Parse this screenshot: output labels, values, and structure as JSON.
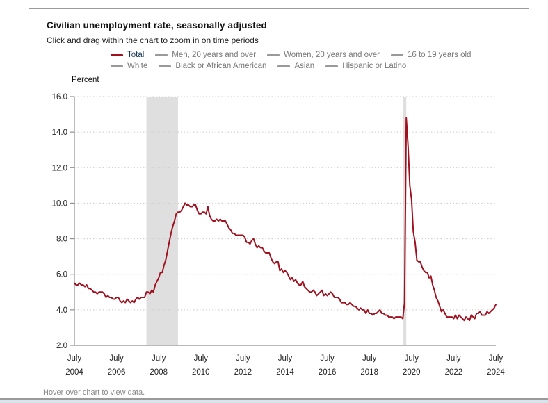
{
  "panel": {
    "title": "Civilian unemployment rate, seasonally adjusted",
    "subtitle": "Click and drag within the chart to zoom in on time periods",
    "ylabel": "Percent",
    "footer": "Hover over chart to view data."
  },
  "legend": {
    "rows": [
      [
        {
          "label": "Total",
          "active": true
        },
        {
          "label": "Men, 20 years and over",
          "active": false
        },
        {
          "label": "Women, 20 years and over",
          "active": false
        },
        {
          "label": "16 to 19 years old",
          "active": false
        }
      ],
      [
        {
          "label": "White",
          "active": false
        },
        {
          "label": "Black or African American",
          "active": false
        },
        {
          "label": "Asian",
          "active": false
        },
        {
          "label": "Hispanic or Latino",
          "active": false
        }
      ]
    ]
  },
  "colors": {
    "line": "#a0111f",
    "inactive_series": "#999999",
    "band": "#dfdfdf",
    "axis": "#8f8f8f",
    "grid": "#c9c9c9",
    "tick_text": "#222222",
    "legend_active_text": "#17365d",
    "legend_inactive_text": "#777777",
    "strip": "#d8e3ee"
  },
  "chart_data": {
    "type": "line",
    "title": "Civilian unemployment rate, seasonally adjusted",
    "xlabel": "",
    "ylabel": "Percent",
    "ylim": [
      2.0,
      16.0
    ],
    "yticks": [
      16.0,
      14.0,
      12.0,
      10.0,
      8.0,
      6.0,
      4.0,
      2.0
    ],
    "grid": "dotted-horizontal",
    "legend_position": "top",
    "xticks": [
      {
        "month": "July",
        "year": "2004"
      },
      {
        "month": "July",
        "year": "2006"
      },
      {
        "month": "July",
        "year": "2008"
      },
      {
        "month": "July",
        "year": "2010"
      },
      {
        "month": "July",
        "year": "2012"
      },
      {
        "month": "July",
        "year": "2014"
      },
      {
        "month": "July",
        "year": "2016"
      },
      {
        "month": "July",
        "year": "2018"
      },
      {
        "month": "July",
        "year": "2020"
      },
      {
        "month": "July",
        "year": "2022"
      },
      {
        "month": "July",
        "year": "2024"
      }
    ],
    "tick_interval_months": 24,
    "recession_bands": [
      {
        "start": "2007-12",
        "end": "2009-06"
      },
      {
        "start": "2020-02",
        "end": "2020-04"
      }
    ],
    "series": [
      {
        "name": "Total",
        "color": "#a0111f",
        "start": "2004-07",
        "frequency": "monthly",
        "values": [
          5.5,
          5.4,
          5.4,
          5.5,
          5.4,
          5.4,
          5.3,
          5.4,
          5.2,
          5.2,
          5.1,
          5.0,
          5.0,
          4.9,
          5.0,
          5.0,
          5.0,
          4.9,
          4.7,
          4.8,
          4.7,
          4.7,
          4.6,
          4.6,
          4.7,
          4.7,
          4.5,
          4.4,
          4.5,
          4.4,
          4.6,
          4.5,
          4.4,
          4.5,
          4.4,
          4.6,
          4.7,
          4.6,
          4.7,
          4.7,
          4.7,
          5.0,
          5.0,
          4.9,
          5.1,
          5.0,
          5.4,
          5.6,
          5.8,
          6.1,
          6.1,
          6.5,
          6.8,
          7.3,
          7.8,
          8.3,
          8.7,
          9.0,
          9.4,
          9.5,
          9.5,
          9.6,
          9.8,
          10.0,
          9.9,
          9.9,
          9.8,
          9.8,
          9.9,
          9.9,
          9.6,
          9.4,
          9.4,
          9.5,
          9.5,
          9.4,
          9.8,
          9.3,
          9.1,
          9.0,
          9.0,
          9.1,
          9.0,
          9.1,
          9.0,
          9.0,
          9.0,
          8.8,
          8.6,
          8.5,
          8.3,
          8.3,
          8.2,
          8.2,
          8.2,
          8.2,
          8.2,
          8.1,
          7.8,
          7.8,
          7.7,
          7.9,
          8.0,
          7.7,
          7.5,
          7.6,
          7.5,
          7.5,
          7.3,
          7.2,
          7.2,
          7.2,
          6.9,
          6.7,
          6.6,
          6.7,
          6.7,
          6.2,
          6.3,
          6.1,
          6.2,
          6.1,
          5.9,
          5.7,
          5.8,
          5.6,
          5.7,
          5.5,
          5.4,
          5.4,
          5.6,
          5.3,
          5.2,
          5.1,
          5.0,
          5.0,
          5.1,
          5.0,
          4.8,
          4.9,
          5.0,
          5.1,
          4.8,
          4.9,
          4.8,
          4.9,
          5.0,
          4.9,
          4.7,
          4.7,
          4.7,
          4.6,
          4.4,
          4.4,
          4.4,
          4.3,
          4.3,
          4.4,
          4.3,
          4.2,
          4.2,
          4.1,
          4.0,
          4.1,
          4.0,
          4.0,
          3.8,
          4.0,
          3.8,
          3.8,
          3.7,
          3.8,
          3.8,
          3.9,
          4.0,
          3.8,
          3.8,
          3.7,
          3.7,
          3.6,
          3.6,
          3.6,
          3.5,
          3.6,
          3.6,
          3.6,
          3.6,
          3.5,
          4.4,
          14.8,
          13.2,
          11.0,
          10.2,
          8.4,
          7.8,
          6.8,
          6.7,
          6.7,
          6.4,
          6.2,
          6.1,
          6.1,
          5.8,
          5.9,
          5.4,
          5.1,
          4.7,
          4.5,
          4.2,
          3.9,
          4.0,
          3.8,
          3.6,
          3.6,
          3.6,
          3.6,
          3.5,
          3.7,
          3.5,
          3.7,
          3.6,
          3.5,
          3.4,
          3.6,
          3.5,
          3.4,
          3.7,
          3.6,
          3.5,
          3.8,
          3.8,
          3.9,
          3.7,
          3.7,
          3.7,
          3.9,
          3.8,
          3.9,
          4.0,
          4.1,
          4.3
        ]
      }
    ]
  }
}
